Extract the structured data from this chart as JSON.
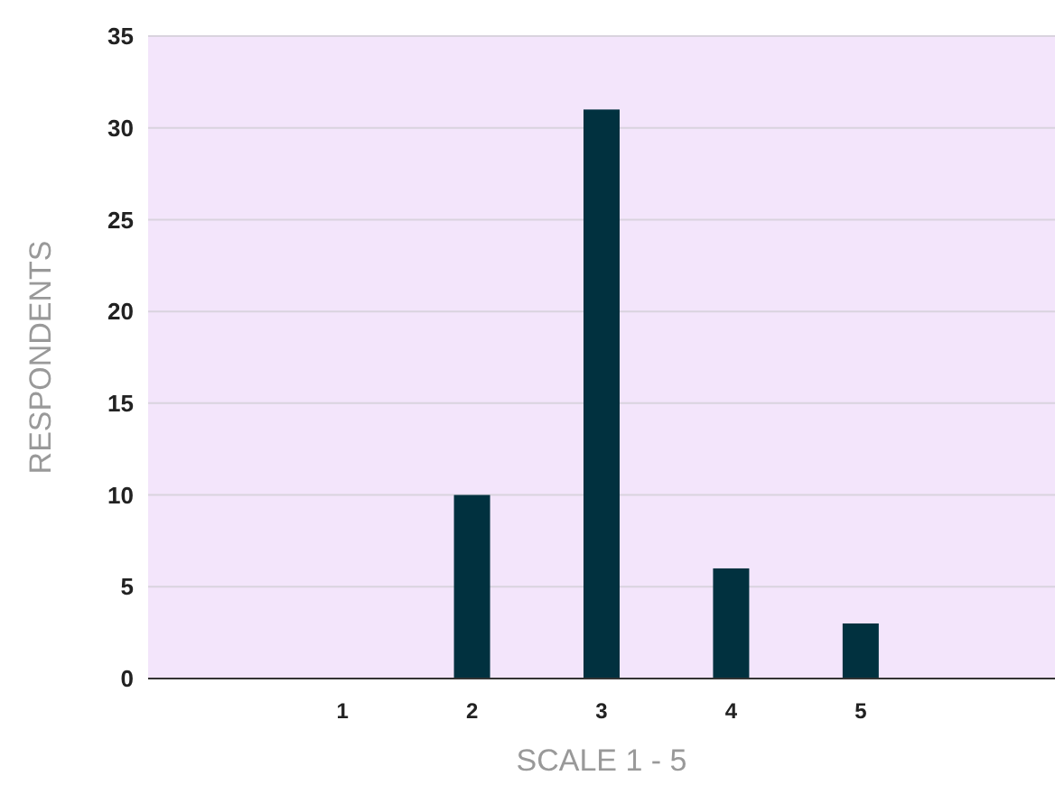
{
  "chart_data": {
    "type": "bar",
    "xlabel": "SCALE 1 - 5",
    "ylabel": "RESPONDENTS",
    "categories": [
      null,
      "1",
      "2",
      "3",
      "4",
      "5",
      null
    ],
    "values": [
      null,
      0,
      10,
      31,
      6,
      3,
      null
    ],
    "color": "#01313f",
    "ylim": [
      0,
      35
    ],
    "yticks": [
      0,
      5,
      10,
      15,
      20,
      25,
      30,
      35
    ],
    "grid": "y"
  }
}
